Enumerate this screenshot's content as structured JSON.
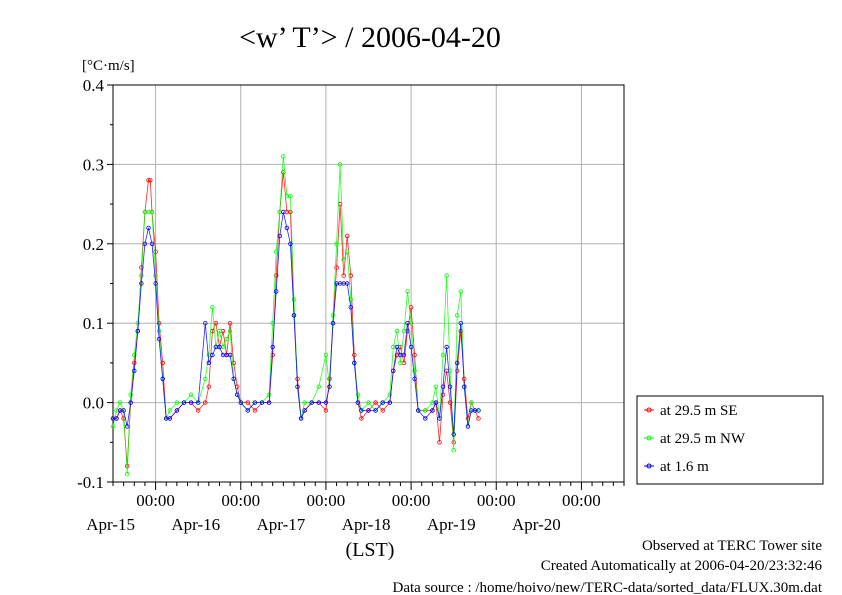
{
  "chart_data": {
    "type": "line",
    "title": "<w’ T’> / 2006-04-20",
    "ylabel": "[°C·m/s]",
    "xlabel": "(LST)",
    "ylim": [
      -0.1,
      0.4
    ],
    "yticks": [
      {
        "value": -0.1,
        "label": "-0.1"
      },
      {
        "value": 0.0,
        "label": "0.0"
      },
      {
        "value": 0.1,
        "label": "0.1"
      },
      {
        "value": 0.2,
        "label": "0.2"
      },
      {
        "value": 0.3,
        "label": "0.3"
      },
      {
        "value": 0.4,
        "label": "0.4"
      }
    ],
    "x_unit": "hours since 2006-04-14 00:00 LST",
    "xlim": [
      12,
      156
    ],
    "day_ticks": [
      {
        "x": 24,
        "time": "00:00",
        "date": "Apr-15"
      },
      {
        "x": 48,
        "time": "00:00",
        "date": "Apr-16"
      },
      {
        "x": 72,
        "time": "00:00",
        "date": "Apr-17"
      },
      {
        "x": 96,
        "time": "00:00",
        "date": "Apr-18"
      },
      {
        "x": 120,
        "time": "00:00",
        "date": "Apr-19"
      },
      {
        "x": 144,
        "time": "00:00",
        "date": "Apr-20"
      }
    ],
    "grid": true,
    "legend_position": "right",
    "series": [
      {
        "name": "at 29.5 m SE",
        "color": "#ff0000",
        "points": [
          [
            12,
            -0.02
          ],
          [
            13,
            -0.02
          ],
          [
            14,
            -0.01
          ],
          [
            15,
            -0.02
          ],
          [
            16,
            -0.08
          ],
          [
            17,
            0.0
          ],
          [
            18,
            0.05
          ],
          [
            19,
            0.09
          ],
          [
            20,
            0.17
          ],
          [
            21,
            0.24
          ],
          [
            22,
            0.28
          ],
          [
            22.5,
            0.28
          ],
          [
            23,
            0.24
          ],
          [
            24,
            0.19
          ],
          [
            25,
            0.1
          ],
          [
            26,
            0.05
          ],
          [
            27,
            -0.02
          ],
          [
            28,
            -0.02
          ],
          [
            30,
            -0.01
          ],
          [
            32,
            0.0
          ],
          [
            34,
            0.0
          ],
          [
            36,
            -0.01
          ],
          [
            38,
            0.0
          ],
          [
            39,
            0.02
          ],
          [
            40,
            0.09
          ],
          [
            41,
            0.1
          ],
          [
            42,
            0.07
          ],
          [
            43,
            0.09
          ],
          [
            44,
            0.06
          ],
          [
            45,
            0.1
          ],
          [
            46,
            0.05
          ],
          [
            47,
            0.02
          ],
          [
            48,
            0.0
          ],
          [
            50,
            0.0
          ],
          [
            52,
            -0.01
          ],
          [
            54,
            0.0
          ],
          [
            56,
            0.0
          ],
          [
            57,
            0.06
          ],
          [
            58,
            0.16
          ],
          [
            59,
            0.24
          ],
          [
            60,
            0.29
          ],
          [
            61,
            0.24
          ],
          [
            62,
            0.24
          ],
          [
            63,
            0.11
          ],
          [
            64,
            0.03
          ],
          [
            65,
            -0.02
          ],
          [
            66,
            -0.01
          ],
          [
            68,
            0.0
          ],
          [
            70,
            0.0
          ],
          [
            72,
            -0.01
          ],
          [
            73,
            0.03
          ],
          [
            74,
            0.1
          ],
          [
            75,
            0.17
          ],
          [
            76,
            0.25
          ],
          [
            77,
            0.16
          ],
          [
            78,
            0.21
          ],
          [
            79,
            0.16
          ],
          [
            80,
            0.06
          ],
          [
            81,
            0.0
          ],
          [
            82,
            -0.02
          ],
          [
            84,
            -0.01
          ],
          [
            86,
            0.0
          ],
          [
            88,
            -0.01
          ],
          [
            90,
            0.0
          ],
          [
            91,
            0.04
          ],
          [
            92,
            0.06
          ],
          [
            93,
            0.07
          ],
          [
            94,
            0.05
          ],
          [
            95,
            0.09
          ],
          [
            96,
            0.12
          ],
          [
            97,
            0.06
          ],
          [
            98,
            -0.01
          ],
          [
            100,
            -0.01
          ],
          [
            102,
            -0.01
          ],
          [
            103,
            0.0
          ],
          [
            104,
            -0.05
          ],
          [
            105,
            0.01
          ],
          [
            106,
            0.04
          ],
          [
            107,
            0.0
          ],
          [
            108,
            -0.05
          ],
          [
            109,
            0.04
          ],
          [
            110,
            0.09
          ],
          [
            111,
            0.03
          ],
          [
            112,
            -0.02
          ],
          [
            113,
            0.0
          ],
          [
            114,
            -0.01
          ],
          [
            115,
            -0.02
          ]
        ]
      },
      {
        "name": "at 29.5 m NW",
        "color": "#00ff00",
        "points": [
          [
            12,
            -0.03
          ],
          [
            13,
            -0.01
          ],
          [
            14,
            0.0
          ],
          [
            15,
            -0.01
          ],
          [
            16,
            -0.09
          ],
          [
            17,
            0.01
          ],
          [
            18,
            0.06
          ],
          [
            19,
            0.1
          ],
          [
            20,
            0.16
          ],
          [
            21,
            0.24
          ],
          [
            22,
            0.24
          ],
          [
            23,
            0.24
          ],
          [
            24,
            0.16
          ],
          [
            25,
            0.09
          ],
          [
            26,
            0.03
          ],
          [
            27,
            -0.02
          ],
          [
            28,
            -0.01
          ],
          [
            30,
            0.0
          ],
          [
            32,
            0.0
          ],
          [
            34,
            0.01
          ],
          [
            36,
            0.0
          ],
          [
            38,
            0.03
          ],
          [
            39,
            0.06
          ],
          [
            40,
            0.12
          ],
          [
            41,
            0.07
          ],
          [
            42,
            0.09
          ],
          [
            43,
            0.07
          ],
          [
            44,
            0.08
          ],
          [
            45,
            0.09
          ],
          [
            46,
            0.03
          ],
          [
            47,
            0.01
          ],
          [
            48,
            0.0
          ],
          [
            50,
            -0.01
          ],
          [
            52,
            0.0
          ],
          [
            54,
            0.0
          ],
          [
            56,
            0.01
          ],
          [
            57,
            0.1
          ],
          [
            58,
            0.19
          ],
          [
            59,
            0.24
          ],
          [
            60,
            0.31
          ],
          [
            61,
            0.26
          ],
          [
            62,
            0.26
          ],
          [
            63,
            0.13
          ],
          [
            64,
            0.02
          ],
          [
            65,
            -0.02
          ],
          [
            66,
            0.0
          ],
          [
            68,
            0.0
          ],
          [
            70,
            0.02
          ],
          [
            72,
            0.06
          ],
          [
            73,
            0.02
          ],
          [
            74,
            0.11
          ],
          [
            75,
            0.2
          ],
          [
            76,
            0.3
          ],
          [
            77,
            0.18
          ],
          [
            78,
            0.19
          ],
          [
            79,
            0.13
          ],
          [
            80,
            0.05
          ],
          [
            81,
            0.01
          ],
          [
            82,
            -0.01
          ],
          [
            84,
            0.0
          ],
          [
            86,
            -0.01
          ],
          [
            88,
            0.0
          ],
          [
            90,
            0.01
          ],
          [
            91,
            0.07
          ],
          [
            92,
            0.09
          ],
          [
            93,
            0.05
          ],
          [
            94,
            0.09
          ],
          [
            95,
            0.14
          ],
          [
            96,
            0.1
          ],
          [
            97,
            0.04
          ],
          [
            98,
            -0.01
          ],
          [
            100,
            -0.01
          ],
          [
            102,
            0.0
          ],
          [
            103,
            0.02
          ],
          [
            104,
            -0.02
          ],
          [
            105,
            0.06
          ],
          [
            106,
            0.16
          ],
          [
            107,
            0.04
          ],
          [
            108,
            -0.06
          ],
          [
            109,
            0.11
          ],
          [
            110,
            0.14
          ],
          [
            111,
            0.02
          ],
          [
            112,
            -0.03
          ],
          [
            113,
            0.0
          ],
          [
            114,
            -0.01
          ],
          [
            115,
            -0.01
          ]
        ]
      },
      {
        "name": "at 1.6 m",
        "color": "#0000ff",
        "points": [
          [
            12,
            -0.02
          ],
          [
            13,
            -0.02
          ],
          [
            14,
            -0.01
          ],
          [
            15,
            -0.01
          ],
          [
            16,
            -0.03
          ],
          [
            17,
            0.0
          ],
          [
            18,
            0.04
          ],
          [
            19,
            0.09
          ],
          [
            20,
            0.15
          ],
          [
            21,
            0.2
          ],
          [
            22,
            0.22
          ],
          [
            23,
            0.2
          ],
          [
            24,
            0.15
          ],
          [
            25,
            0.08
          ],
          [
            26,
            0.03
          ],
          [
            27,
            -0.02
          ],
          [
            28,
            -0.02
          ],
          [
            30,
            -0.01
          ],
          [
            32,
            0.0
          ],
          [
            34,
            0.0
          ],
          [
            36,
            0.0
          ],
          [
            38,
            0.1
          ],
          [
            39,
            0.05
          ],
          [
            40,
            0.06
          ],
          [
            41,
            0.07
          ],
          [
            42,
            0.07
          ],
          [
            43,
            0.06
          ],
          [
            44,
            0.06
          ],
          [
            45,
            0.06
          ],
          [
            46,
            0.03
          ],
          [
            47,
            0.01
          ],
          [
            48,
            0.0
          ],
          [
            50,
            -0.01
          ],
          [
            52,
            0.0
          ],
          [
            54,
            0.0
          ],
          [
            56,
            0.0
          ],
          [
            57,
            0.07
          ],
          [
            58,
            0.14
          ],
          [
            59,
            0.21
          ],
          [
            60,
            0.24
          ],
          [
            61,
            0.22
          ],
          [
            62,
            0.2
          ],
          [
            63,
            0.11
          ],
          [
            64,
            0.02
          ],
          [
            65,
            -0.02
          ],
          [
            66,
            -0.01
          ],
          [
            68,
            0.0
          ],
          [
            70,
            0.0
          ],
          [
            72,
            0.0
          ],
          [
            73,
            0.02
          ],
          [
            74,
            0.1
          ],
          [
            75,
            0.15
          ],
          [
            76,
            0.15
          ],
          [
            77,
            0.15
          ],
          [
            78,
            0.15
          ],
          [
            79,
            0.12
          ],
          [
            80,
            0.05
          ],
          [
            81,
            0.0
          ],
          [
            82,
            -0.01
          ],
          [
            84,
            -0.01
          ],
          [
            86,
            -0.01
          ],
          [
            88,
            0.0
          ],
          [
            90,
            0.0
          ],
          [
            91,
            0.04
          ],
          [
            92,
            0.07
          ],
          [
            93,
            0.06
          ],
          [
            94,
            0.06
          ],
          [
            95,
            0.1
          ],
          [
            96,
            0.07
          ],
          [
            97,
            0.03
          ],
          [
            98,
            -0.01
          ],
          [
            100,
            -0.02
          ],
          [
            102,
            -0.01
          ],
          [
            103,
            0.0
          ],
          [
            104,
            -0.02
          ],
          [
            105,
            0.02
          ],
          [
            106,
            0.07
          ],
          [
            107,
            0.02
          ],
          [
            108,
            -0.04
          ],
          [
            109,
            0.05
          ],
          [
            110,
            0.1
          ],
          [
            111,
            0.02
          ],
          [
            112,
            -0.03
          ],
          [
            113,
            -0.01
          ],
          [
            114,
            -0.01
          ],
          [
            115,
            -0.01
          ]
        ]
      }
    ]
  },
  "footer": {
    "line1": "Observed at TERC Tower site",
    "line2": "Created Automatically at 2006-04-20/23:32:46",
    "line3": "Data source : /home/hoivo/new/TERC-data/sorted_data/FLUX.30m.dat"
  }
}
